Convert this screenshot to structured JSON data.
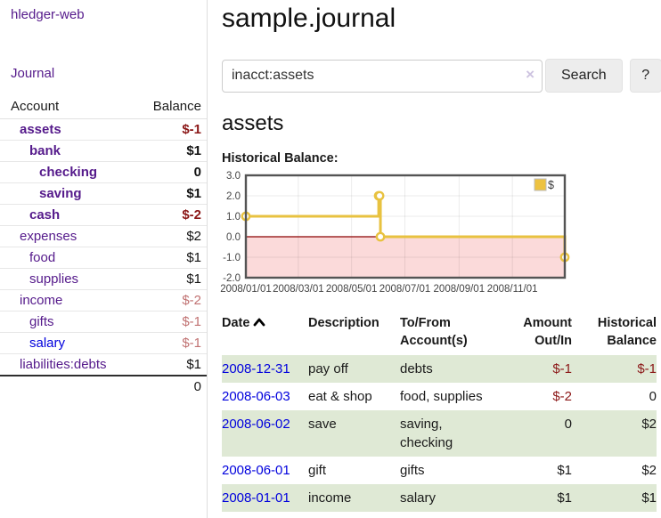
{
  "colors": {
    "purple": "#551a8b",
    "link-blue": "#0000dd",
    "neg-strong": "#8b1717",
    "neg-soft": "#c17272",
    "row-green": "#dfe9d5",
    "chart-line": "#e8c240",
    "legend-swatch": "#edc240",
    "chart-neg-fill": "#fbdada",
    "chart-zero-line": "#8b0000",
    "chart-border": "#545454",
    "btn-bg": "#ededed"
  },
  "sidebar": {
    "app_title": "hledger-web",
    "nav": {
      "journal_label": "Journal"
    },
    "accounts_table": {
      "headers": {
        "account": "Account",
        "balance": "Balance"
      },
      "rows": [
        {
          "name": "assets",
          "balance": "$-1",
          "level": 1,
          "bold": true,
          "balance_class": "neg-strong",
          "link_color": "purple"
        },
        {
          "name": "bank",
          "balance": "$1",
          "level": 2,
          "bold": true,
          "balance_class": "",
          "link_color": "purple"
        },
        {
          "name": "checking",
          "balance": "0",
          "level": 3,
          "bold": true,
          "balance_class": "",
          "link_color": "purple"
        },
        {
          "name": "saving",
          "balance": "$1",
          "level": 3,
          "bold": true,
          "balance_class": "",
          "link_color": "purple"
        },
        {
          "name": "cash",
          "balance": "$-2",
          "level": 2,
          "bold": true,
          "balance_class": "neg-strong",
          "link_color": "purple"
        },
        {
          "name": "expenses",
          "balance": "$2",
          "level": 1,
          "bold": false,
          "balance_class": "",
          "link_color": "purple"
        },
        {
          "name": "food",
          "balance": "$1",
          "level": 2,
          "bold": false,
          "balance_class": "",
          "link_color": "purple"
        },
        {
          "name": "supplies",
          "balance": "$1",
          "level": 2,
          "bold": false,
          "balance_class": "",
          "link_color": "purple"
        },
        {
          "name": "income",
          "balance": "$-2",
          "level": 1,
          "bold": false,
          "balance_class": "neg-soft",
          "link_color": "purple"
        },
        {
          "name": "gifts",
          "balance": "$-1",
          "level": 2,
          "bold": false,
          "balance_class": "neg-soft",
          "link_color": "purple"
        },
        {
          "name": "salary",
          "balance": "$-1",
          "level": 2,
          "bold": false,
          "balance_class": "neg-soft",
          "link_color": "blue"
        },
        {
          "name": "liabilities:debts",
          "balance": "$1",
          "level": 1,
          "bold": false,
          "balance_class": "",
          "link_color": "purple"
        }
      ],
      "total": "0"
    }
  },
  "header": {
    "title": "sample.journal"
  },
  "search": {
    "value": "inacct:assets",
    "clear_icon": "×",
    "button_label": "Search",
    "help_label": "?"
  },
  "register": {
    "heading": "assets",
    "chart_label": "Historical Balance:",
    "table": {
      "headers": {
        "date": "Date",
        "description": "Description",
        "accounts": "To/From Account(s)",
        "amount": "Amount Out/In",
        "balance": "Historical Balance"
      },
      "rows": [
        {
          "date": "2008-12-31",
          "description": "pay off",
          "accounts": "debts",
          "amount": "$-1",
          "balance": "$-1",
          "amount_neg": true,
          "balance_neg": true
        },
        {
          "date": "2008-06-03",
          "description": "eat & shop",
          "accounts": "food, supplies",
          "amount": "$-2",
          "balance": "0",
          "amount_neg": true,
          "balance_neg": false
        },
        {
          "date": "2008-06-02",
          "description": "save",
          "accounts": "saving, checking",
          "amount": "0",
          "balance": "$2",
          "amount_neg": false,
          "balance_neg": false
        },
        {
          "date": "2008-06-01",
          "description": "gift",
          "accounts": "gifts",
          "amount": "$1",
          "balance": "$2",
          "amount_neg": false,
          "balance_neg": false
        },
        {
          "date": "2008-01-01",
          "description": "income",
          "accounts": "salary",
          "amount": "$1",
          "balance": "$1",
          "amount_neg": false,
          "balance_neg": false
        }
      ]
    }
  },
  "chart_data": {
    "type": "line",
    "style": "step",
    "title": "Historical Balance",
    "legend": {
      "label": "$",
      "position": "top-right"
    },
    "ylim": [
      -2,
      3
    ],
    "y_ticks": [
      3.0,
      2.0,
      1.0,
      0.0,
      -1.0,
      -2.0
    ],
    "x_ticks": [
      "2008/01/01",
      "2008/03/01",
      "2008/05/01",
      "2008/07/01",
      "2008/09/01",
      "2008/11/01"
    ],
    "x_tick_days": [
      0,
      60,
      121,
      182,
      244,
      305
    ],
    "x_range_days": [
      0,
      365
    ],
    "grid": true,
    "negative_region_shaded": true,
    "series": [
      {
        "name": "$",
        "points": [
          [
            "2008-01-01",
            1
          ],
          [
            "2008-06-01",
            2
          ],
          [
            "2008-06-02",
            2
          ],
          [
            "2008-06-03",
            0
          ],
          [
            "2008-12-31",
            -1
          ]
        ],
        "points_days": [
          [
            0,
            1
          ],
          [
            152,
            2
          ],
          [
            153,
            2
          ],
          [
            154,
            0
          ],
          [
            365,
            -1
          ]
        ]
      }
    ]
  }
}
